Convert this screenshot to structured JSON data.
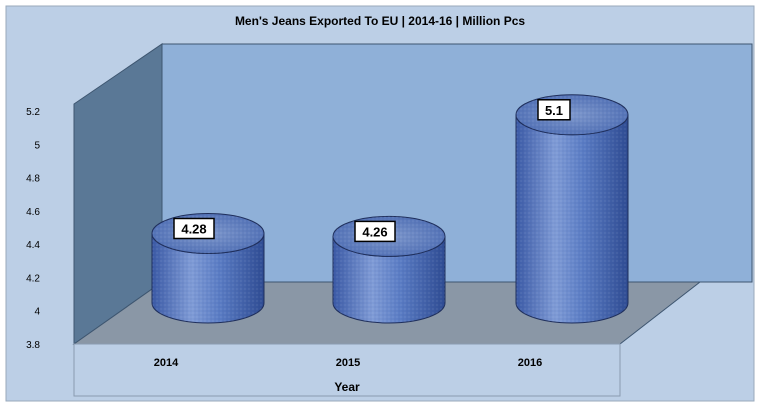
{
  "chart_data": {
    "type": "bar",
    "style": "3d-cylinder",
    "title": "Men's Jeans Exported To EU | 2014-16 | Million Pcs",
    "xlabel": "Year",
    "ylabel": "",
    "categories": [
      "2014",
      "2015",
      "2016"
    ],
    "values": [
      4.28,
      4.26,
      5.1
    ],
    "data_labels": [
      "4.28",
      "4.26",
      "5.1"
    ],
    "ylim": [
      3.8,
      5.2
    ],
    "yticks": [
      "3.8",
      "4",
      "4.2",
      "4.4",
      "4.6",
      "4.8",
      "5",
      "5.2"
    ],
    "legend": "none",
    "grid": false,
    "colors": {
      "chart_area": "#bccfe6",
      "back_wall": "#8fb0d8",
      "side_wall": "#5a7896",
      "floor": "#8a97a6",
      "bar": "#4a6bb8",
      "bar_light": "#8ea9dc",
      "label_box": "#ffffff"
    }
  }
}
